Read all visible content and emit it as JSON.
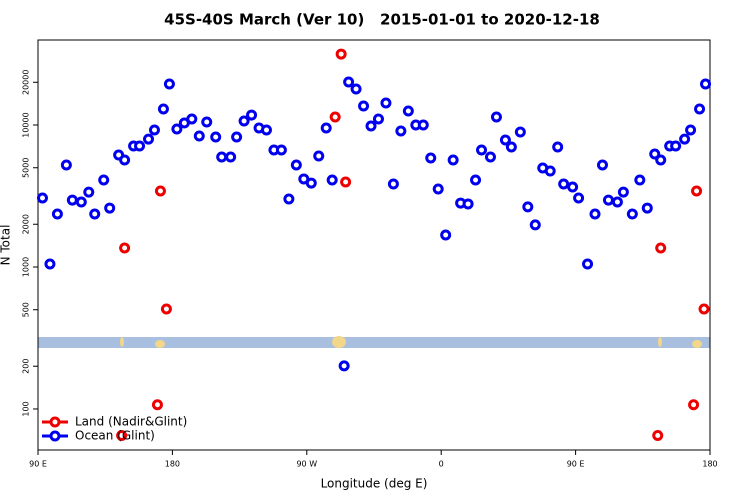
{
  "chart_data": {
    "type": "scatter",
    "title": "45S-40S March (Ver 10)   2015-01-01 to 2020-12-18",
    "x_label": "Longitude (deg E)",
    "y_label": "N Total",
    "xlim": [
      90,
      540
    ],
    "xticks": [
      {
        "value": 90,
        "label": "90 E"
      },
      180,
      {
        "value": 270,
        "label": "90 W"
      },
      {
        "value": 360,
        "label": "0"
      },
      {
        "value": 450,
        "label": "90 E"
      },
      {
        "value": 540,
        "label": "180"
      }
    ],
    "ylim": [
      51.4,
      39700
    ],
    "log_y": true,
    "yticks": [
      100,
      200,
      500,
      1000,
      2000,
      5000,
      10000,
      20000
    ],
    "legend": "lower left",
    "series": [
      {
        "name": "Land (Nadir&Glint)",
        "color": "#ee0000",
        "x": [
          146,
          148,
          170,
          172,
          176,
          289,
          293,
          296,
          505,
          507,
          529,
          531,
          536
        ],
        "values": [
          65,
          1360,
          107,
          3430,
          506,
          11380,
          31600,
          3970,
          65,
          1360,
          107,
          3430,
          506
        ]
      },
      {
        "name": "Ocean (Glint)",
        "color": "#0000ee",
        "x": [
          93,
          98,
          103,
          109,
          113,
          119,
          124,
          128,
          134,
          138,
          144,
          148,
          154,
          158,
          164,
          168,
          174,
          178,
          183,
          188,
          193,
          198,
          203,
          209,
          213,
          219,
          223,
          228,
          233,
          238,
          243,
          248,
          253,
          258,
          263,
          268,
          273,
          278,
          283,
          287,
          295,
          298,
          303,
          308,
          313,
          318,
          323,
          328,
          333,
          338,
          343,
          348,
          353,
          358,
          363,
          368,
          373,
          378,
          383,
          387,
          393,
          397,
          403,
          407,
          413,
          418,
          423,
          428,
          433,
          438,
          442,
          448,
          452,
          458,
          463,
          468,
          472,
          478,
          482,
          488,
          493,
          498,
          503,
          507,
          513,
          517,
          523,
          527,
          533,
          537
        ],
        "values": [
          3060,
          1050,
          2360,
          5230,
          2960,
          2870,
          3370,
          2360,
          4100,
          2600,
          6150,
          5670,
          7110,
          7110,
          7960,
          9220,
          12960,
          19450,
          9370,
          10330,
          11020,
          8370,
          10500,
          8230,
          5950,
          5950,
          8230,
          10670,
          11750,
          9530,
          9220,
          6670,
          6670,
          3010,
          5230,
          4170,
          3900,
          6050,
          9530,
          4100,
          201,
          20090,
          17940,
          13610,
          9840,
          11020,
          14290,
          3840,
          9070,
          12560,
          10000,
          10000,
          5860,
          3540,
          1680,
          5670,
          2820,
          2780,
          4100,
          6670,
          5950,
          11380,
          7840,
          7000,
          8930,
          2650,
          1980,
          4980,
          4740,
          7000,
          3840,
          3660,
          3060,
          1050,
          2360,
          5230,
          2960,
          2870,
          3370,
          2360,
          4100,
          2600,
          6250,
          5670,
          7110,
          7110,
          7960,
          9220,
          12960,
          19450
        ]
      }
    ]
  }
}
